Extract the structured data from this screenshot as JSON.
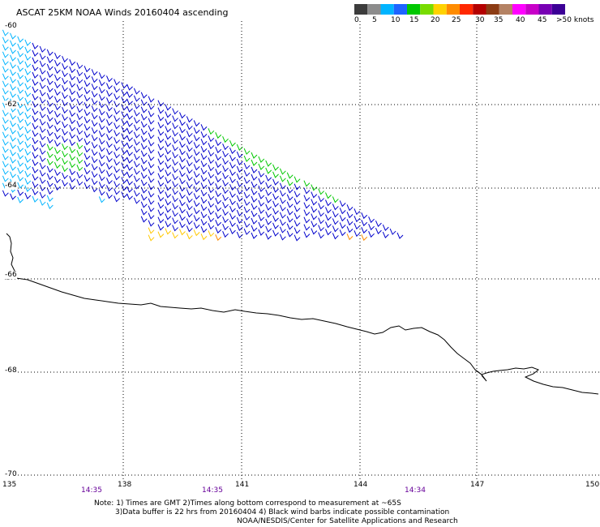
{
  "title": "ASCAT 25KM NOAA Winds 20160404 ascending",
  "color_scale": {
    "labels": [
      "0",
      "5",
      "10",
      "15",
      "20",
      "25",
      "30",
      "35",
      "40",
      "45",
      ">50 knots"
    ],
    "colors": [
      "#3c3c3c",
      "#8c8c8c",
      "#00b4ff",
      "#1e64ff",
      "#00c800",
      "#78dc00",
      "#ffd200",
      "#ff8c00",
      "#ff2800",
      "#b40000",
      "#8c3c14",
      "#b48264",
      "#ff00ff",
      "#c800c8",
      "#7800b4",
      "#3c0096"
    ]
  },
  "lat_labels": [
    "-60",
    "-62",
    "-64",
    "-66",
    "-68",
    "-70"
  ],
  "lon_labels": [
    "135",
    "138",
    "141",
    "144",
    "147",
    "150"
  ],
  "time_labels": [
    "14:35",
    "14:35",
    "14:34"
  ],
  "notes": {
    "line1": "Note: 1) Times are GMT 2)Times along bottom correspond to measurement at ~65S",
    "line2": "3)Data buffer is 22 hrs from 20160404 4) Black wind barbs indicate possible contamination",
    "line3": "NOAA/NESDIS/Center for Satellite Applications and Research"
  },
  "wind_colors": {
    "light_blue": "#00b4ff",
    "dark_blue": "#0000cc",
    "green": "#00c800",
    "yellow": "#ffc800",
    "orange": "#ff8c00"
  }
}
